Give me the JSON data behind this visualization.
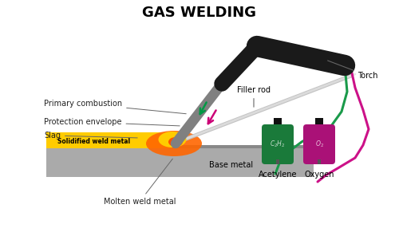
{
  "title": "GAS WELDING",
  "title_fontsize": 13,
  "background_color": "#ffffff",
  "labels": {
    "primary_combustion": "Primary combustion",
    "protection_envelope": "Protection envelope",
    "slag": "Slag",
    "solidified_weld_metal": "Solidified weld metal",
    "base_metal": "Base metal",
    "molten_weld_metal": "Molten weld metal",
    "filler_rod": "Filler rod",
    "torch": "Torch",
    "acetylene": "Acetylene",
    "oxygen": "Oxygen"
  },
  "colors": {
    "torch_gray": "#808080",
    "torch_black": "#1a1a1a",
    "flame_orange": "#ff6600",
    "flame_yellow": "#ffcc00",
    "flame_red": "#ff3300",
    "solidified_weld": "#ffcc00",
    "base_metal": "#aaaaaa",
    "base_metal_dark": "#888888",
    "filler_rod": "#c0c0c0",
    "filler_rod_light": "#e0e0e0",
    "acetylene_bottle": "#1a7a3a",
    "oxygen_bottle": "#aa1177",
    "hose_green": "#1a9a4a",
    "hose_magenta": "#cc1188",
    "arrow_green": "#009944",
    "arrow_magenta": "#cc0077",
    "label_text": "#222222",
    "annotation_line": "#666666",
    "neck_black": "#111111",
    "pin_gray": "#555555"
  }
}
